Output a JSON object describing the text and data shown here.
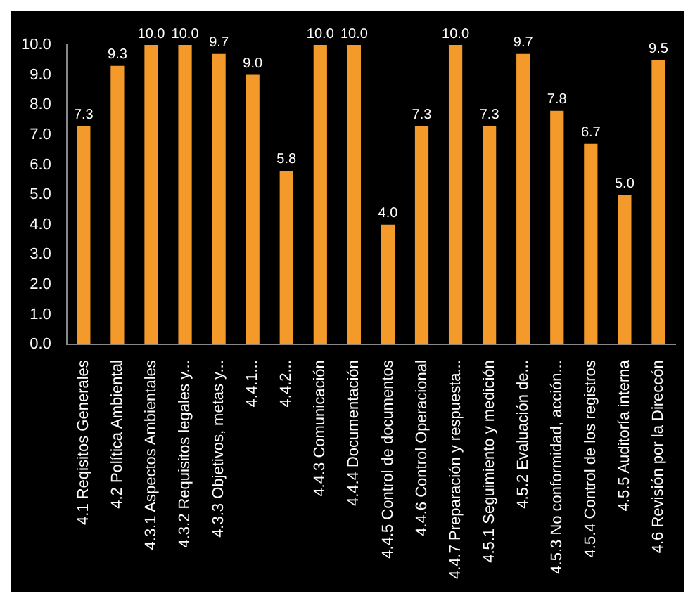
{
  "chart_data": {
    "type": "bar",
    "categories": [
      "4.1 Reqisitos Generales",
      "4.2 Política Ambiental",
      "4.3.1 Aspectos Ambientales",
      "4.3.2 Requisitos legales y...",
      "4.3.3 Objetivos, metas y...",
      "4.4.1...",
      "4.4.2...",
      "4.4.3 Comunicación",
      "4.4.4 Documentación",
      "4.4.5 Control de documentos",
      "4.4.6 Control Operacional",
      "4.4.7 Preparación y respuesta...",
      "4.5.1 Seguimiento y medición",
      "4.5.2 Evaluación de...",
      "4.5.3 No conformidad, acción...",
      "4.5.4 Control de los registros",
      "4.5.5 Auditoría interna",
      "4.6 Revisión por la Direccón"
    ],
    "values": [
      7.3,
      9.3,
      10,
      10,
      9.7,
      9,
      5.8,
      10,
      10,
      4,
      7.3,
      10,
      7.3,
      9.7,
      7.8,
      6.7,
      5,
      9.5
    ],
    "value_labels": [
      "7.3",
      "9.3",
      "10.0",
      "10.0",
      "9.7",
      "9.0",
      "5.8",
      "10.0",
      "10.0",
      "4.0",
      "7.3",
      "10.0",
      "7.3",
      "9.7",
      "7.8",
      "6.7",
      "5.0",
      "9.5"
    ],
    "color": "#f39a2b",
    "ylim": [
      0,
      10
    ],
    "yticks": [
      {
        "value": 0,
        "label": "0.0"
      },
      {
        "value": 1,
        "label": "1.0"
      },
      {
        "value": 2,
        "label": "2.0"
      },
      {
        "value": 3,
        "label": "3.0"
      },
      {
        "value": 4,
        "label": "4.0"
      },
      {
        "value": 5,
        "label": "5.0"
      },
      {
        "value": 6,
        "label": "6.0"
      },
      {
        "value": 7,
        "label": "7.0"
      },
      {
        "value": 8,
        "label": "8.0"
      },
      {
        "value": 9,
        "label": "9.0"
      },
      {
        "value": 10,
        "label": "10.0"
      }
    ],
    "grid": false,
    "legend": false
  }
}
